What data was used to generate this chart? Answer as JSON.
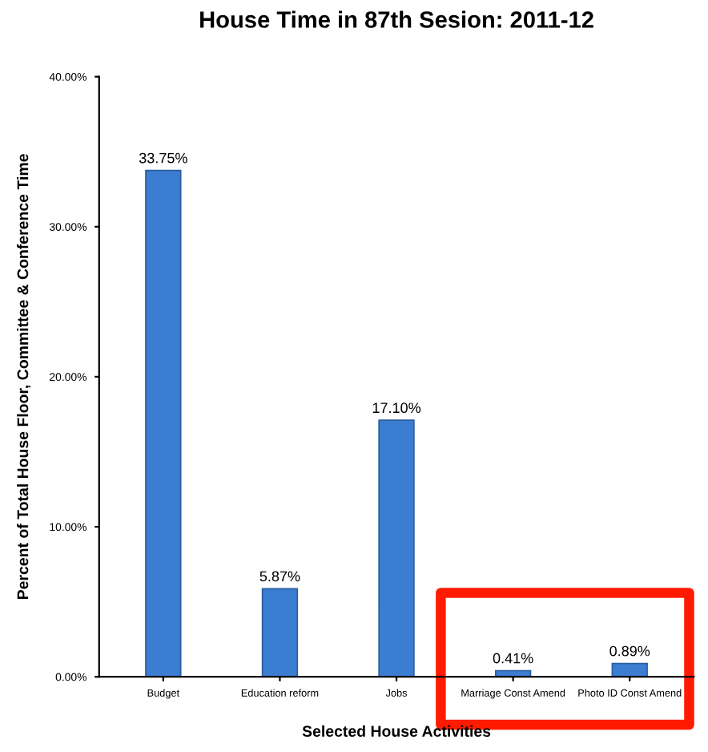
{
  "chart_data": {
    "type": "bar",
    "title": "House Time in 87th Sesion: 2011-12",
    "xlabel": "Selected House Activities",
    "ylabel": "Percent of Total House Floor, Committee & Conference Time",
    "categories": [
      "Budget",
      "Education reform",
      "Jobs",
      "Marriage Const Amend",
      "Photo ID Const Amend"
    ],
    "values": [
      33.75,
      5.87,
      17.1,
      0.41,
      0.89
    ],
    "value_labels": [
      "33.75%",
      "5.87%",
      "17.10%",
      "0.41%",
      "0.89%"
    ],
    "color": "#3b7dd0",
    "ylim": [
      0,
      40
    ],
    "yticks": [
      {
        "value": 0,
        "label": "0.00%"
      },
      {
        "value": 10,
        "label": "10.00%"
      },
      {
        "value": 20,
        "label": "20.00%"
      },
      {
        "value": 30,
        "label": "30.00%"
      },
      {
        "value": 40,
        "label": "40.00%"
      }
    ],
    "grid": false,
    "legend": false
  }
}
